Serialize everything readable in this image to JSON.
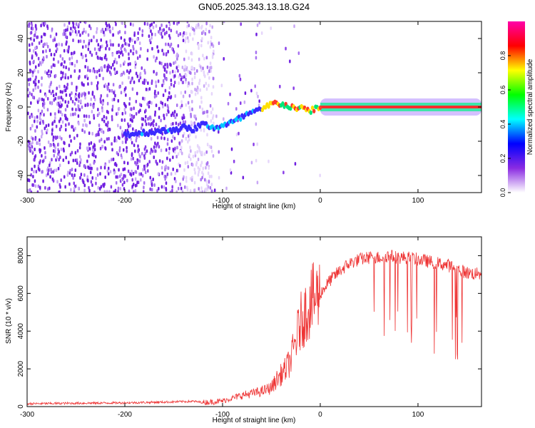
{
  "title": "GN05.2025.343.13.18.G24",
  "chart_data": [
    {
      "type": "heatmap",
      "title": "GN05.2025.343.13.18.G24",
      "xlabel": "Height of straight line (km)",
      "ylabel": "Frequency (Hz)",
      "xlim": [
        -300,
        165
      ],
      "ylim": [
        -50,
        50
      ],
      "xticks": [
        -300,
        -200,
        -100,
        0,
        100
      ],
      "yticks": [
        -40,
        -20,
        0,
        20,
        40
      ],
      "colorbar": {
        "label": "Normalized spectral amplitude",
        "range": [
          0,
          1
        ],
        "ticks": [
          "0.0",
          "0.2",
          "0.4",
          "0.6",
          "0.8"
        ],
        "tick_values": [
          0,
          0.2,
          0.4,
          0.6,
          0.8
        ],
        "colors": [
          "#ffffff",
          "#8a2be2",
          "#0000ff",
          "#00ffff",
          "#00ff00",
          "#ffff00",
          "#ff0000",
          "#ff00aa"
        ]
      },
      "ridge": {
        "x": [
          -200,
          -180,
          -160,
          -150,
          -140,
          -130,
          -120,
          -110,
          -100,
          -90,
          -80,
          -70,
          -60,
          -50,
          -40,
          -30,
          -20,
          -10,
          0,
          50,
          100,
          165
        ],
        "freq": [
          -16,
          -15,
          -14,
          -13,
          -12,
          -13,
          -10,
          -12,
          -11,
          -9,
          -6,
          -3,
          -2,
          2,
          2,
          0,
          -1,
          -2,
          0,
          0,
          0,
          0
        ]
      }
    },
    {
      "type": "line",
      "xlabel": "Height of straight line (km)",
      "ylabel": "SNR (10 * v/v)",
      "xlim": [
        -300,
        165
      ],
      "ylim": [
        0,
        9000
      ],
      "xticks": [
        -300,
        -200,
        -100,
        0,
        100
      ],
      "yticks": [
        0,
        2000,
        4000,
        6000,
        8000
      ],
      "color": "#ee3333",
      "series": [
        {
          "name": "SNR",
          "x": [
            -300,
            -250,
            -200,
            -150,
            -130,
            -120,
            -110,
            -100,
            -90,
            -80,
            -70,
            -60,
            -50,
            -45,
            -40,
            -35,
            -30,
            -25,
            -20,
            -15,
            -10,
            -5,
            0,
            10,
            20,
            30,
            40,
            50,
            60,
            70,
            80,
            90,
            100,
            110,
            120,
            130,
            140,
            150,
            165
          ],
          "values": [
            150,
            180,
            200,
            250,
            280,
            220,
            250,
            300,
            450,
            600,
            700,
            800,
            1000,
            1400,
            1700,
            2000,
            2500,
            3500,
            4500,
            5000,
            5500,
            5800,
            6000,
            6700,
            7200,
            7600,
            7800,
            7900,
            7900,
            8000,
            7900,
            7900,
            7800,
            7700,
            7600,
            7500,
            7300,
            7100,
            7000
          ]
        }
      ]
    }
  ]
}
